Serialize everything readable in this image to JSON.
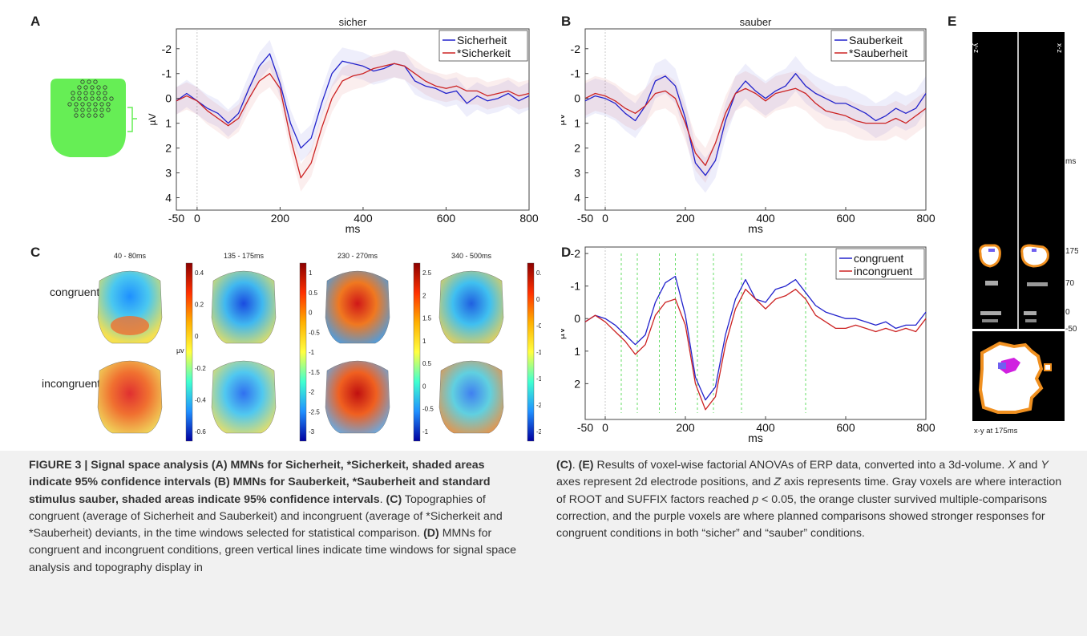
{
  "panels": {
    "A": {
      "letter": "A",
      "title": "sicher"
    },
    "B": {
      "letter": "B",
      "title": "sauber"
    },
    "C": {
      "letter": "C"
    },
    "D": {
      "letter": "D"
    },
    "E": {
      "letter": "E"
    }
  },
  "chart_data": [
    {
      "id": "A",
      "type": "line",
      "title": "sicher",
      "xlabel": "ms",
      "ylabel": "µV",
      "xlim": [
        -50,
        800
      ],
      "ylim": [
        -2.8,
        4.5
      ],
      "y_inverted": true,
      "xticks": [
        -50,
        0,
        200,
        400,
        600,
        800
      ],
      "yticks": [
        -2,
        -1,
        0,
        1,
        2,
        3,
        4
      ],
      "legend": "top-right",
      "series": [
        {
          "name": "Sicherheit",
          "color": "#2222cc",
          "x": [
            -50,
            -25,
            0,
            25,
            50,
            75,
            100,
            125,
            150,
            175,
            200,
            225,
            250,
            275,
            300,
            325,
            350,
            375,
            400,
            425,
            450,
            475,
            500,
            525,
            550,
            575,
            600,
            625,
            650,
            675,
            700,
            725,
            750,
            775,
            800
          ],
          "y": [
            0.1,
            -0.2,
            0.1,
            0.4,
            0.6,
            1.0,
            0.6,
            -0.4,
            -1.3,
            -1.8,
            -0.6,
            1.0,
            2.0,
            1.6,
            0.2,
            -1.0,
            -1.5,
            -1.4,
            -1.3,
            -1.1,
            -1.2,
            -1.4,
            -1.3,
            -0.7,
            -0.5,
            -0.4,
            -0.2,
            -0.3,
            0.2,
            -0.1,
            0.1,
            0.0,
            -0.2,
            0.1,
            -0.1
          ],
          "ci_half": 0.55
        },
        {
          "name": "*Sicherkeit",
          "color": "#cc2222",
          "x": [
            -50,
            -25,
            0,
            25,
            50,
            75,
            100,
            125,
            150,
            175,
            200,
            225,
            250,
            275,
            300,
            325,
            350,
            375,
            400,
            425,
            450,
            475,
            500,
            525,
            550,
            575,
            600,
            625,
            650,
            675,
            700,
            725,
            750,
            775,
            800
          ],
          "y": [
            0.1,
            -0.1,
            0.1,
            0.5,
            0.8,
            1.1,
            0.8,
            0.0,
            -0.7,
            -1.0,
            -0.4,
            1.6,
            3.2,
            2.6,
            1.2,
            0.0,
            -0.7,
            -0.9,
            -1.0,
            -1.2,
            -1.3,
            -1.4,
            -1.3,
            -1.0,
            -0.7,
            -0.5,
            -0.4,
            -0.5,
            -0.3,
            -0.3,
            -0.1,
            -0.2,
            -0.3,
            -0.1,
            -0.2
          ],
          "ci_half": 0.55
        }
      ]
    },
    {
      "id": "B",
      "type": "line",
      "title": "sauber",
      "xlabel": "ms",
      "ylabel": "µV",
      "xlim": [
        -50,
        800
      ],
      "ylim": [
        -2.8,
        4.5
      ],
      "y_inverted": true,
      "xticks": [
        -50,
        0,
        200,
        400,
        600,
        800
      ],
      "yticks": [
        -2,
        -1,
        0,
        1,
        2,
        3,
        4
      ],
      "legend": "top-right",
      "series": [
        {
          "name": "Sauberkeit",
          "color": "#2222cc",
          "x": [
            -50,
            -25,
            0,
            25,
            50,
            75,
            100,
            125,
            150,
            175,
            200,
            225,
            250,
            275,
            300,
            325,
            350,
            375,
            400,
            425,
            450,
            475,
            500,
            525,
            550,
            575,
            600,
            625,
            650,
            675,
            700,
            725,
            750,
            775,
            800
          ],
          "y": [
            0.1,
            -0.1,
            0.0,
            0.2,
            0.6,
            0.9,
            0.3,
            -0.7,
            -0.9,
            -0.5,
            0.8,
            2.6,
            3.1,
            2.5,
            0.9,
            -0.2,
            -0.7,
            -0.3,
            0.0,
            -0.3,
            -0.5,
            -1.0,
            -0.5,
            -0.2,
            0.0,
            0.2,
            0.2,
            0.4,
            0.6,
            0.9,
            0.7,
            0.4,
            0.6,
            0.4,
            -0.2
          ],
          "ci_half": 0.7
        },
        {
          "name": "*Sauberheit",
          "color": "#cc2222",
          "x": [
            -50,
            -25,
            0,
            25,
            50,
            75,
            100,
            125,
            150,
            175,
            200,
            225,
            250,
            275,
            300,
            325,
            350,
            375,
            400,
            425,
            450,
            475,
            500,
            525,
            550,
            575,
            600,
            625,
            650,
            675,
            700,
            725,
            750,
            775,
            800
          ],
          "y": [
            0.0,
            -0.2,
            -0.1,
            0.1,
            0.4,
            0.6,
            0.3,
            -0.2,
            -0.3,
            0.0,
            1.0,
            2.2,
            2.7,
            1.8,
            0.6,
            -0.2,
            -0.4,
            -0.2,
            0.1,
            -0.2,
            -0.3,
            -0.4,
            -0.2,
            0.2,
            0.5,
            0.6,
            0.7,
            0.9,
            1.0,
            1.0,
            1.0,
            0.8,
            1.0,
            0.7,
            0.4
          ],
          "ci_half": 0.7
        }
      ]
    },
    {
      "id": "D",
      "type": "line",
      "xlabel": "ms",
      "ylabel": "µV",
      "xlim": [
        -50,
        800
      ],
      "ylim": [
        -2.2,
        3.1
      ],
      "y_inverted": true,
      "xticks": [
        -50,
        0,
        200,
        400,
        600,
        800
      ],
      "yticks": [
        -2,
        -1,
        0,
        1,
        2
      ],
      "legend": "top-right",
      "time_windows": [
        [
          40,
          80
        ],
        [
          135,
          175
        ],
        [
          230,
          270
        ],
        [
          340,
          500
        ]
      ],
      "series": [
        {
          "name": "congruent",
          "color": "#2222cc",
          "x": [
            -50,
            -25,
            0,
            25,
            50,
            75,
            100,
            125,
            150,
            175,
            200,
            225,
            250,
            275,
            300,
            325,
            350,
            375,
            400,
            425,
            450,
            475,
            500,
            525,
            550,
            575,
            600,
            625,
            650,
            675,
            700,
            725,
            750,
            775,
            800
          ],
          "y": [
            0.1,
            -0.1,
            0.0,
            0.2,
            0.5,
            0.8,
            0.5,
            -0.5,
            -1.1,
            -1.3,
            -0.1,
            1.8,
            2.5,
            2.1,
            0.5,
            -0.6,
            -1.2,
            -0.6,
            -0.5,
            -0.9,
            -1.0,
            -1.2,
            -0.8,
            -0.4,
            -0.2,
            -0.1,
            0.0,
            0.0,
            0.1,
            0.2,
            0.1,
            0.3,
            0.2,
            0.2,
            -0.2
          ],
          "ci_half": 0
        },
        {
          "name": "incongruent",
          "color": "#cc2222",
          "x": [
            -50,
            -25,
            0,
            25,
            50,
            75,
            100,
            125,
            150,
            175,
            200,
            225,
            250,
            275,
            300,
            325,
            350,
            375,
            400,
            425,
            450,
            475,
            500,
            525,
            550,
            575,
            600,
            625,
            650,
            675,
            700,
            725,
            750,
            775,
            800
          ],
          "y": [
            0.1,
            -0.1,
            0.1,
            0.4,
            0.7,
            1.1,
            0.8,
            -0.1,
            -0.5,
            -0.6,
            0.2,
            2.0,
            2.8,
            2.4,
            0.8,
            -0.3,
            -0.9,
            -0.6,
            -0.3,
            -0.6,
            -0.7,
            -0.9,
            -0.6,
            -0.1,
            0.1,
            0.3,
            0.3,
            0.2,
            0.3,
            0.4,
            0.3,
            0.4,
            0.3,
            0.4,
            0.0
          ],
          "ci_half": 0
        }
      ]
    }
  ],
  "topography": {
    "rows": [
      "congruent",
      "incongruent"
    ],
    "windows": [
      "40 - 80ms",
      "135 - 175ms",
      "230 - 270ms",
      "340 - 500ms"
    ],
    "unit": "µv",
    "colorbars": [
      {
        "ticks": [
          "0.4",
          "0.2",
          "0",
          "-0.2",
          "-0.4",
          "-0.6"
        ]
      },
      {
        "ticks": [
          "1",
          "0.5",
          "0",
          "-0.5",
          "-1",
          "-1.5",
          "-2",
          "-2.5",
          "-3"
        ]
      },
      {
        "ticks": [
          "2.5",
          "2",
          "1.5",
          "1",
          "0.5",
          "0",
          "-0.5",
          "-1"
        ]
      },
      {
        "ticks": [
          "0.5",
          "0",
          "-0.5",
          "-1",
          "-1.5",
          "-2",
          "-2.5"
        ]
      }
    ],
    "maps": [
      [
        {
          "center": "#1e90ff",
          "mid": "#4ac8f0",
          "edge": "#f5e050",
          "hot": "#f07030"
        },
        {
          "center": "#1a4be0",
          "mid": "#40b8f0",
          "edge": "#e8e060",
          "hot": ""
        },
        {
          "center": "#d01818",
          "mid": "#f07820",
          "edge": "#40a0f0",
          "hot": ""
        },
        {
          "center": "#2060e0",
          "mid": "#40c0f0",
          "edge": "#f0d050",
          "hot": ""
        }
      ],
      [
        {
          "center": "#e03030",
          "mid": "#f07030",
          "edge": "#f0e060",
          "hot": ""
        },
        {
          "center": "#3070f0",
          "mid": "#50c8f0",
          "edge": "#f0e060",
          "hot": ""
        },
        {
          "center": "#c01010",
          "mid": "#f06020",
          "edge": "#60b0f0",
          "hot": ""
        },
        {
          "center": "#4080f0",
          "mid": "#60d0e0",
          "edge": "#f09040",
          "hot": ""
        }
      ]
    ]
  },
  "panel_e": {
    "upper_labels": {
      "left": "y-z",
      "right": "x-z"
    },
    "axis_labels": [
      "ms",
      "175",
      "70",
      "0",
      "-50"
    ],
    "bottom_label": "x-y at 175ms"
  },
  "caption": {
    "fig": "FIGURE 3 | Signal space analysis (A) MMNs for Sicherheit, *Sicherkeit, shaded areas indicate 95% confidence intervals (B) MMNs for Sauberkeit, *Sauberheit and standard stimulus sauber, shaded areas indicate 95% confidence intervals",
    "c_label": "(C)",
    "c_text": "Topographies of congruent (average of Sicherheit and Sauberkeit) and incongruent (average of *Sicherkeit and *Sauberheit) deviants, in the time windows selected for statistical comparison.",
    "d_label": "(D)",
    "d_text": "MMNs for congruent and incongruent conditions, green vertical lines indicate time windows for signal space analysis and topography display in",
    "d_ref": "(C)",
    "e_label": "(E)",
    "e_text1": "Results of voxel-wise factorial ANOVAs of ERP data, converted into a 3d-volume.",
    "x": "X",
    "and": "and",
    "y": "Y",
    "e_text2": "axes represent 2d electrode positions, and",
    "z": "Z",
    "e_text3": "axis represents time. Gray voxels are where interaction of ROOT and SUFFIX factors reached",
    "p": "p",
    "e_text4": "< 0.05, the orange cluster survived multiple-comparisons correction, and the purple voxels are where planned comparisons showed stronger responses for congruent conditions in both “sicher” and “sauber” conditions."
  }
}
